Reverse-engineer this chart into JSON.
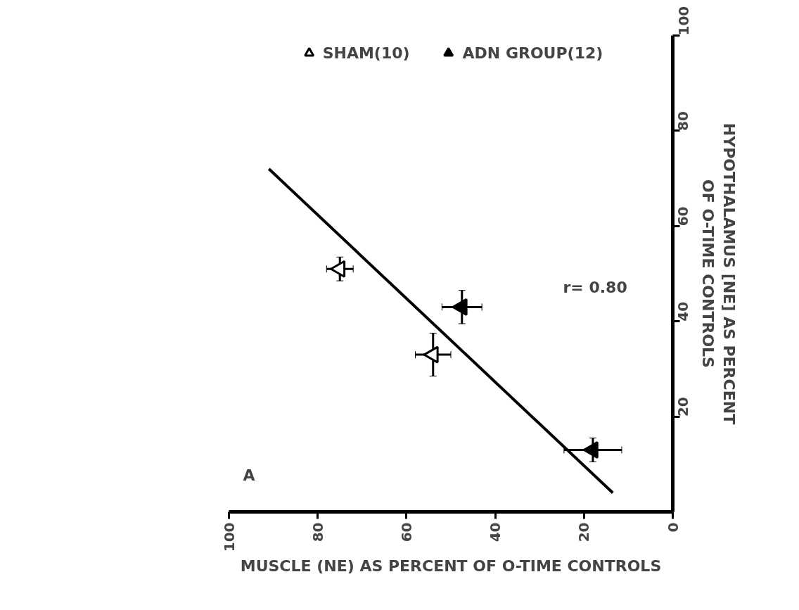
{
  "chart_data": {
    "type": "scatter",
    "xlabel": "MUSCLE (NE) AS PERCENT OF O-TIME CONTROLS",
    "ylabel": "HYPOTHALAMUS [NE] AS PERCENT\nOF O-TIME CONTROLS",
    "xlim": [
      100,
      0
    ],
    "ylim": [
      0,
      100
    ],
    "xticks": [
      0,
      20,
      40,
      60,
      80,
      100
    ],
    "yticks": [
      20,
      40,
      60,
      80,
      100
    ],
    "grid": false,
    "legend": "top",
    "annotations": [
      "r= 0.80",
      "A"
    ],
    "series": [
      {
        "name": "SHAM(10)",
        "marker": "triangle",
        "color": "#ffffff",
        "x": [
          54,
          75
        ],
        "values": [
          33,
          51
        ],
        "errors": [
          4.5,
          2.5
        ],
        "xerrors": [
          4,
          3
        ]
      },
      {
        "name": "ADN GROUP(12)",
        "marker": "triangle",
        "color": "#000000",
        "x": [
          47.5,
          18
        ],
        "values": [
          43,
          13
        ],
        "errors": [
          3.5,
          2.5
        ],
        "xerrors": [
          4.5,
          6.5
        ]
      },
      {
        "type": "line",
        "color": "#000000",
        "x": [
          91,
          13.5
        ],
        "values": [
          72,
          4
        ]
      }
    ]
  }
}
